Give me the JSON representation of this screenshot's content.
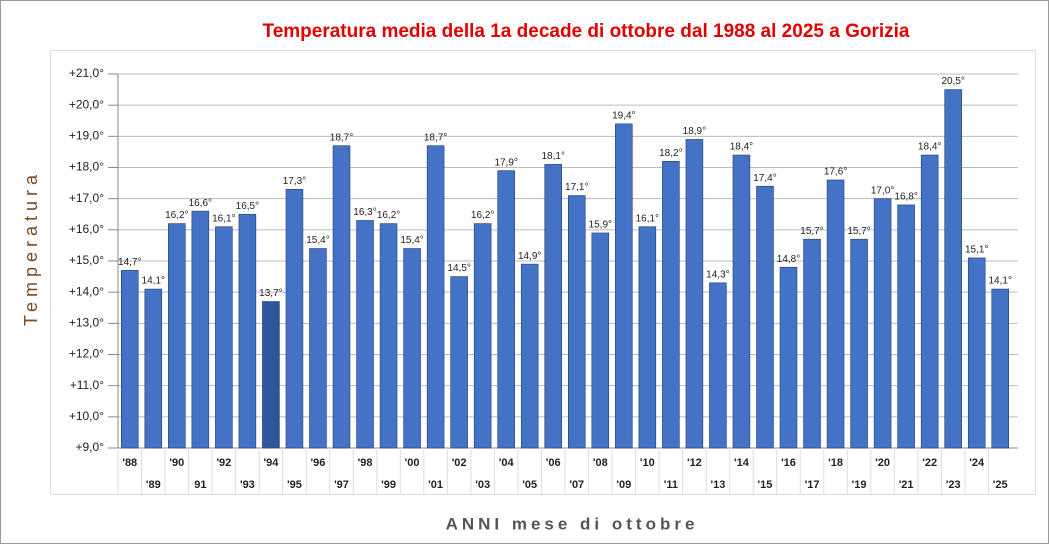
{
  "chart_data": {
    "type": "bar",
    "title": "Temperatura  media  della  1a  decade  di  ottobre dal 1988 al 2025 a Gorizia",
    "y_label": "Temperatura",
    "x_label": "ANNI mese di ottobre",
    "categories": [
      "'88",
      "'89",
      "'90",
      "91",
      "'92",
      "'93",
      "'94",
      "'95",
      "'96",
      "'97",
      "'98",
      "'99",
      "'00",
      "'01",
      "'02",
      "'03",
      "'04",
      "'05",
      "'06",
      "'07",
      "'08",
      "'09",
      "'10",
      "'11",
      "'12",
      "'13",
      "'14",
      "'15",
      "'16",
      "'17",
      "'18",
      "'19",
      "'20",
      "'21",
      "'22",
      "'23",
      "'24",
      "'25"
    ],
    "values": [
      14.7,
      14.1,
      16.2,
      16.6,
      16.1,
      16.5,
      13.7,
      17.3,
      15.4,
      18.7,
      16.3,
      16.2,
      15.4,
      18.7,
      14.5,
      16.2,
      17.9,
      14.9,
      18.1,
      17.1,
      15.9,
      19.4,
      16.1,
      18.2,
      18.9,
      14.3,
      18.4,
      17.4,
      14.8,
      15.7,
      17.6,
      15.7,
      17.0,
      16.8,
      18.4,
      20.5,
      15.1,
      14.1
    ],
    "value_labels": [
      "14,7°",
      "14,1°",
      "16,2°",
      "16,6°",
      "16,1°",
      "16,5°",
      "13,7°",
      "17,3°",
      "15,4°",
      "18,7°",
      "16,3°",
      "16,2°",
      "15,4°",
      "18,7°",
      "14,5°",
      "16,2°",
      "17,9°",
      "14,9°",
      "18,1°",
      "17,1°",
      "15,9°",
      "19,4°",
      "16,1°",
      "18,2°",
      "18,9°",
      "14,3°",
      "18,4°",
      "17,4°",
      "14,8°",
      "15,7°",
      "17,6°",
      "15,7°",
      "17,0°",
      "16,8°",
      "18,4°",
      "20,5°",
      "15,1°",
      "14,1°"
    ],
    "color": "#4472c4",
    "colors": [
      "#4472c4",
      "#4472c4",
      "#4472c4",
      "#4472c4",
      "#4472c4",
      "#4472c4",
      "#2f559c",
      "#4472c4",
      "#4472c4",
      "#4472c4",
      "#4472c4",
      "#4472c4",
      "#4472c4",
      "#4472c4",
      "#4472c4",
      "#4472c4",
      "#4472c4",
      "#4472c4",
      "#4472c4",
      "#4472c4",
      "#4472c4",
      "#4472c4",
      "#4472c4",
      "#4472c4",
      "#4472c4",
      "#4472c4",
      "#4472c4",
      "#4472c4",
      "#4472c4",
      "#4472c4",
      "#4472c4",
      "#4472c4",
      "#4472c4",
      "#4472c4",
      "#4472c4",
      "#4472c4",
      "#4472c4",
      "#4472c4"
    ],
    "ylim": [
      9,
      21
    ],
    "yticks": [
      {
        "value": 9,
        "label": "+9,0°"
      },
      {
        "value": 10,
        "label": "+10,0°"
      },
      {
        "value": 11,
        "label": "+11,0°"
      },
      {
        "value": 12,
        "label": "+12,0°"
      },
      {
        "value": 13,
        "label": "+13,0°"
      },
      {
        "value": 14,
        "label": "+14,0°"
      },
      {
        "value": 15,
        "label": "+15,0°"
      },
      {
        "value": 16,
        "label": "+16,0°"
      },
      {
        "value": 17,
        "label": "+17,0°"
      },
      {
        "value": 18,
        "label": "+18,0°"
      },
      {
        "value": 19,
        "label": "+19,0°"
      },
      {
        "value": 20,
        "label": "+20,0°"
      },
      {
        "value": 21,
        "label": "+21,0°"
      }
    ],
    "grid": true
  }
}
